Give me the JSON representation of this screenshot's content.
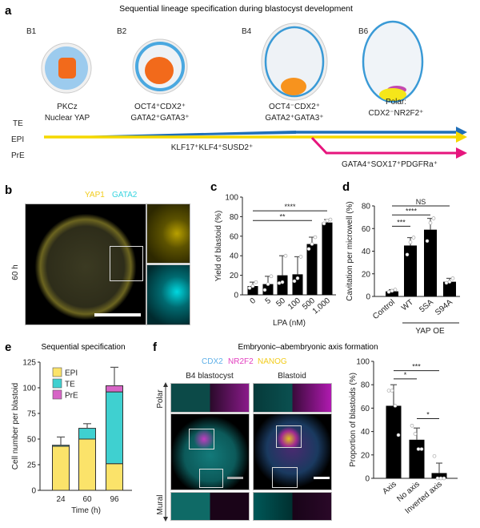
{
  "panels": {
    "a": {
      "label": "a",
      "title": "Sequential lineage specification during blastocyst development",
      "stages": [
        {
          "name": "B1",
          "markers": [
            "PKCz",
            "Nuclear YAP"
          ]
        },
        {
          "name": "B2",
          "markers": [
            "OCT4⁺CDX2⁺",
            "GATA2⁺GATA3⁺"
          ]
        },
        {
          "name": "B4",
          "markers": [
            "OCT4⁻CDX2⁺",
            "GATA2⁺GATA3⁺"
          ]
        },
        {
          "name": "B6",
          "markers": [
            "Polar:",
            "CDX2⁻NR2F2⁺"
          ]
        }
      ],
      "lineages": [
        {
          "name": "TE",
          "color": "#1f6fb8"
        },
        {
          "name": "EPI",
          "color": "#f5d800",
          "markers": "KLF17⁺KLF4⁺SUSD2⁺"
        },
        {
          "name": "PrE",
          "color": "#e6157d",
          "markers": "GATA4⁺SOX17⁺PDGFRa⁺"
        }
      ]
    },
    "b": {
      "label": "b",
      "stain1": "YAP1",
      "stain1_color": "#f2cc1c",
      "stain2": "GATA2",
      "stain2_color": "#38d4e0",
      "timepoint": "60 h"
    },
    "c": {
      "label": "c"
    },
    "d": {
      "label": "d",
      "group_label": "YAP OE"
    },
    "e": {
      "label": "e",
      "title": "Sequential specification"
    },
    "f": {
      "label": "f",
      "title": "Embryonic–abembryonic axis formation",
      "stains": [
        {
          "name": "CDX2",
          "color": "#5fb0e8"
        },
        {
          "name": "NR2F2",
          "color": "#e23fbf"
        },
        {
          "name": "NANOG",
          "color": "#f2cc1c"
        }
      ],
      "columns": [
        "B4 blastocyst",
        "Blastoid"
      ],
      "axis_labels": [
        "Polar",
        "Mural"
      ]
    }
  },
  "chart_data": [
    {
      "id": "c",
      "type": "bar",
      "categories": [
        "0",
        "5",
        "50",
        "100",
        "500",
        "1,000"
      ],
      "values": [
        9,
        11,
        20,
        21,
        52,
        74
      ],
      "error_upper": [
        13,
        19,
        40,
        39,
        59,
        77
      ],
      "points": [
        [
          7,
          9,
          13
        ],
        [
          5,
          11,
          19
        ],
        [
          12,
          13,
          40
        ],
        [
          14,
          17,
          39
        ],
        [
          47,
          52,
          59
        ],
        [
          73,
          76,
          77
        ]
      ],
      "xlabel": "LPA (nM)",
      "ylabel": "Yield of blastoid (%)",
      "ylim": [
        0,
        100
      ],
      "yticks": [
        0,
        20,
        40,
        60,
        80,
        100
      ],
      "significance": [
        {
          "from": 0,
          "to": 5,
          "label": "****",
          "level": 86
        },
        {
          "from": 0,
          "to": 4,
          "label": "**",
          "level": 76
        }
      ]
    },
    {
      "id": "d",
      "type": "bar",
      "categories": [
        "Control",
        "WT",
        "5SA",
        "S94A"
      ],
      "values": [
        4.5,
        45,
        59,
        13
      ],
      "error_upper": [
        6,
        52,
        69,
        16
      ],
      "points": [
        [
          4,
          5,
          6
        ],
        [
          37,
          48,
          52
        ],
        [
          49,
          65,
          69
        ],
        [
          12,
          13,
          16
        ]
      ],
      "ylabel": "Cavitation per microwell (%)",
      "ylim": [
        0,
        80
      ],
      "yticks": [
        0,
        20,
        40,
        60,
        80
      ],
      "significance": [
        {
          "from": 0,
          "to": 1,
          "label": "***",
          "level": 62
        },
        {
          "from": 0,
          "to": 2,
          "label": "****",
          "level": 72
        },
        {
          "from": 0,
          "to": 3,
          "label": "NS",
          "level": 80
        }
      ]
    },
    {
      "id": "e",
      "type": "stacked_bar",
      "categories": [
        "24",
        "60",
        "96"
      ],
      "series": [
        {
          "name": "EPI",
          "color": "#fbe36a",
          "values": [
            43,
            50,
            26
          ]
        },
        {
          "name": "TE",
          "color": "#3fd0d0",
          "values": [
            1,
            10.5,
            70
          ]
        },
        {
          "name": "PrE",
          "color": "#d765c6",
          "values": [
            0,
            0,
            6
          ]
        }
      ],
      "error_upper_total": [
        52,
        65,
        120
      ],
      "xlabel": "Time (h)",
      "ylabel": "Cell number per blastoid",
      "ylim": [
        0,
        125
      ],
      "yticks": [
        0,
        25,
        50,
        75,
        100,
        125
      ],
      "legend": "top-left"
    },
    {
      "id": "f",
      "type": "bar",
      "categories": [
        "Axis",
        "No axis",
        "Inverted axis"
      ],
      "values": [
        62,
        33,
        4.5
      ],
      "error_upper": [
        80,
        43,
        13
      ],
      "points": [
        [
          75,
          75,
          62,
          37
        ],
        [
          45,
          38,
          25,
          25
        ],
        [
          19,
          0,
          0,
          0
        ]
      ],
      "ylabel": "Proportion of blastoids (%)",
      "ylim": [
        0,
        100
      ],
      "yticks": [
        0,
        20,
        40,
        60,
        80,
        100
      ],
      "significance": [
        {
          "from": 0,
          "to": 1,
          "label": "*",
          "level": 85
        },
        {
          "from": 0,
          "to": 2,
          "label": "***",
          "level": 92
        },
        {
          "from": 1,
          "to": 2,
          "label": "*",
          "level": 51
        }
      ]
    }
  ]
}
